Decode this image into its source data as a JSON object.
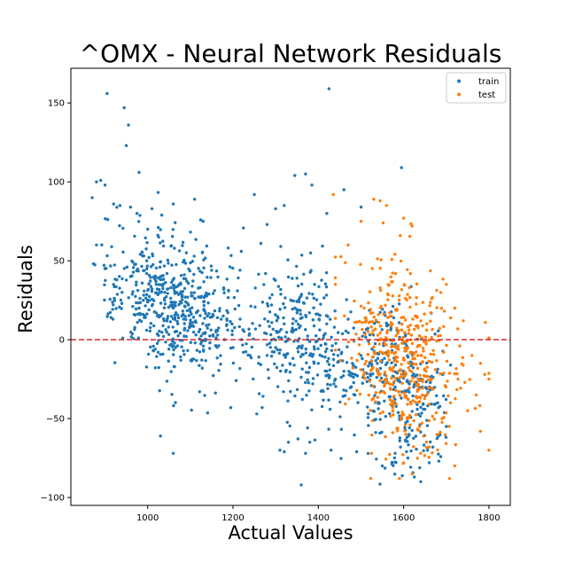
{
  "chart_data": {
    "type": "scatter",
    "title": "^OMX - Neural Network Residuals",
    "xlabel": "Actual Values",
    "ylabel": "Residuals",
    "xlim": [
      820,
      1850
    ],
    "ylim": [
      -105,
      172
    ],
    "xticks": [
      1000,
      1200,
      1400,
      1600,
      1800
    ],
    "yticks": [
      150,
      100,
      50,
      0,
      -50,
      -100
    ],
    "xtick_labels": [
      "1000",
      "1200",
      "1400",
      "1600",
      "1800"
    ],
    "ytick_labels": [
      "150",
      "100",
      "50",
      "0",
      "−50",
      "−100"
    ],
    "grid": false,
    "legend_position": "top-right",
    "reference_line": {
      "y": 0,
      "color": "#d62728",
      "style": "dashed"
    },
    "series": [
      {
        "name": "train",
        "color": "#1f77b4",
        "points": [
          [
            905,
            156
          ],
          [
            945,
            147
          ],
          [
            950,
            123
          ],
          [
            955,
            136
          ],
          [
            980,
            106
          ],
          [
            1425,
            159
          ],
          [
            1595,
            109
          ],
          [
            870,
            90
          ],
          [
            880,
            100
          ],
          [
            890,
            101
          ],
          [
            900,
            98
          ],
          [
            920,
            86
          ],
          [
            935,
            85
          ],
          [
            960,
            84
          ],
          [
            975,
            80
          ],
          [
            1010,
            83
          ],
          [
            1000,
            70
          ],
          [
            1060,
            86
          ],
          [
            1110,
            89
          ],
          [
            1130,
            75
          ],
          [
            1250,
            92
          ],
          [
            1280,
            73
          ],
          [
            1300,
            83
          ],
          [
            1320,
            85
          ],
          [
            1345,
            104
          ],
          [
            1370,
            105
          ],
          [
            1385,
            98
          ],
          [
            1420,
            80
          ],
          [
            1460,
            95
          ],
          [
            1500,
            84
          ],
          [
            880,
            60
          ],
          [
            900,
            45
          ],
          [
            920,
            35
          ],
          [
            940,
            30
          ],
          [
            960,
            40
          ],
          [
            980,
            20
          ],
          [
            1000,
            25
          ],
          [
            1020,
            35
          ],
          [
            1040,
            30
          ],
          [
            1060,
            20
          ],
          [
            1080,
            15
          ],
          [
            1100,
            10
          ],
          [
            1120,
            5
          ],
          [
            1140,
            15
          ],
          [
            1160,
            5
          ],
          [
            1180,
            0
          ],
          [
            1200,
            -5
          ],
          [
            1220,
            0
          ],
          [
            1240,
            -10
          ],
          [
            1260,
            -15
          ],
          [
            1280,
            -10
          ],
          [
            1300,
            -5
          ],
          [
            1320,
            10
          ],
          [
            1340,
            5
          ],
          [
            1360,
            -5
          ],
          [
            1380,
            -10
          ],
          [
            1400,
            -15
          ],
          [
            1420,
            -20
          ],
          [
            1440,
            -25
          ],
          [
            1460,
            -20
          ],
          [
            1480,
            -15
          ],
          [
            1500,
            -10
          ],
          [
            1520,
            -15
          ],
          [
            1540,
            -20
          ],
          [
            1560,
            -25
          ],
          [
            1580,
            -30
          ],
          [
            1600,
            -20
          ],
          [
            1620,
            -15
          ],
          [
            1640,
            -25
          ],
          [
            1660,
            -30
          ],
          [
            1680,
            -40
          ],
          [
            1700,
            -55
          ],
          [
            1030,
            -61
          ],
          [
            1060,
            -72
          ],
          [
            1310,
            -70
          ],
          [
            1320,
            -71
          ],
          [
            1330,
            -65
          ],
          [
            1360,
            -92
          ],
          [
            1370,
            -72
          ],
          [
            1380,
            -65
          ],
          [
            1430,
            -70
          ],
          [
            1490,
            -71
          ],
          [
            1550,
            -80
          ],
          [
            1580,
            -72
          ],
          [
            1610,
            -75
          ],
          [
            1625,
            -87
          ],
          [
            1640,
            -90
          ],
          [
            1660,
            -78
          ]
        ],
        "generated": {
          "count": 1150,
          "seed": 7
        }
      },
      {
        "name": "test",
        "color": "#ff7f0e",
        "points": [
          [
            1435,
            92
          ],
          [
            1530,
            89
          ],
          [
            1545,
            88
          ],
          [
            1560,
            85
          ],
          [
            1600,
            77
          ],
          [
            1620,
            72
          ],
          [
            1500,
            75
          ],
          [
            1470,
            60
          ],
          [
            1700,
            35
          ],
          [
            1720,
            20
          ],
          [
            1740,
            12
          ],
          [
            1760,
            -10
          ],
          [
            1780,
            -15
          ],
          [
            1790,
            -22
          ],
          [
            1800,
            -25
          ],
          [
            1720,
            -80
          ],
          [
            1780,
            -58
          ],
          [
            1800,
            -70
          ],
          [
            1690,
            -50
          ],
          [
            1750,
            -45
          ],
          [
            1770,
            -35
          ],
          [
            1710,
            -40
          ],
          [
            1640,
            -72
          ],
          [
            1660,
            -68
          ],
          [
            1680,
            -60
          ],
          [
            1620,
            -85
          ],
          [
            1600,
            -78
          ]
        ],
        "generated": {
          "count": 480,
          "seed": 3
        }
      }
    ]
  }
}
